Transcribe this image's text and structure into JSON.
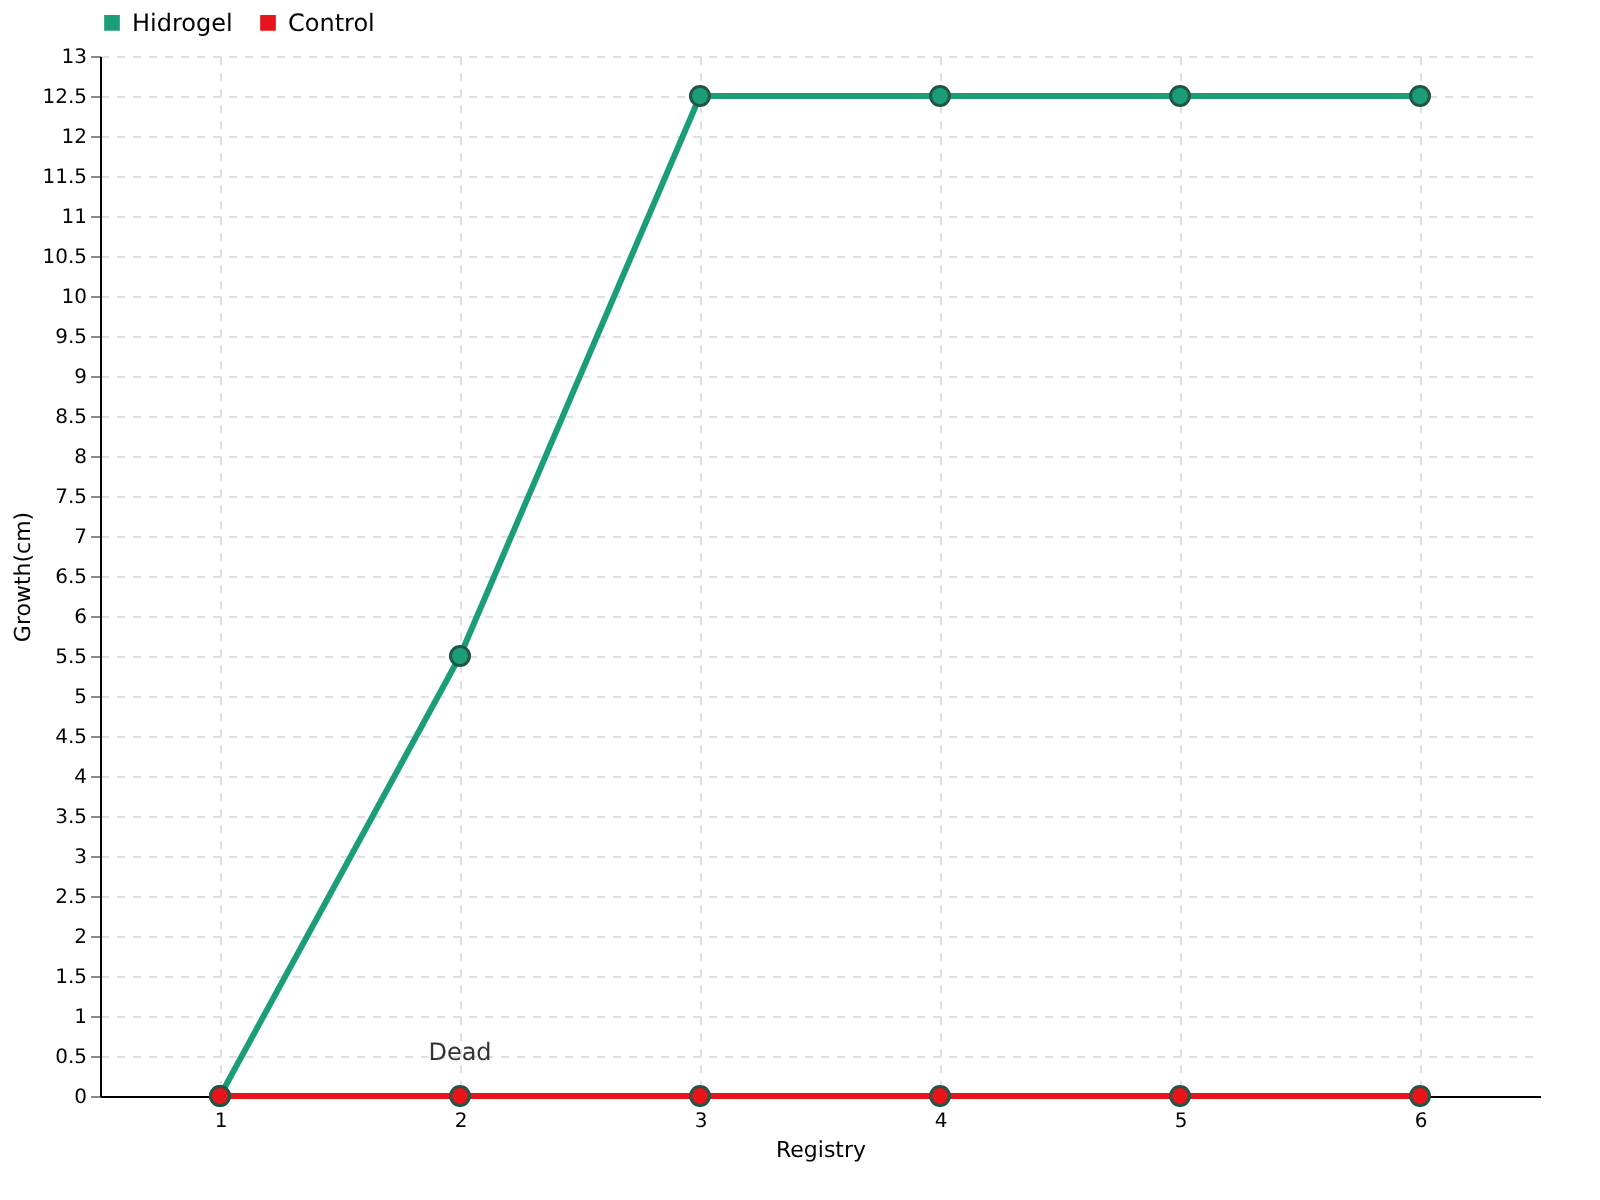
{
  "chart_data": {
    "type": "line",
    "xlabel": "Registry",
    "ylabel": "Growth(cm)",
    "x": [
      1,
      2,
      3,
      4,
      5,
      6
    ],
    "series": [
      {
        "name": "Hidrogel",
        "color": "#1b9e77",
        "values": [
          0,
          5.5,
          12.5,
          12.5,
          12.5,
          12.5
        ]
      },
      {
        "name": "Control",
        "color": "#e8141c",
        "values": [
          0,
          0,
          0,
          0,
          0,
          0
        ]
      }
    ],
    "xlim": [
      0.5,
      6.5
    ],
    "xticks": [
      1,
      2,
      3,
      4,
      5,
      6
    ],
    "ylim": [
      0,
      13
    ],
    "yticks": [
      0,
      0.5,
      1,
      1.5,
      2,
      2.5,
      3,
      3.5,
      4,
      4.5,
      5,
      5.5,
      6,
      6.5,
      7,
      7.5,
      8,
      8.5,
      9,
      9.5,
      10,
      10.5,
      11,
      11.5,
      12,
      12.5,
      13
    ],
    "annotations": [
      {
        "text": "Dead",
        "x": 2,
        "y": 0
      }
    ],
    "grid": true,
    "legend": "top left",
    "marker": "circle",
    "line_style": "solid"
  }
}
